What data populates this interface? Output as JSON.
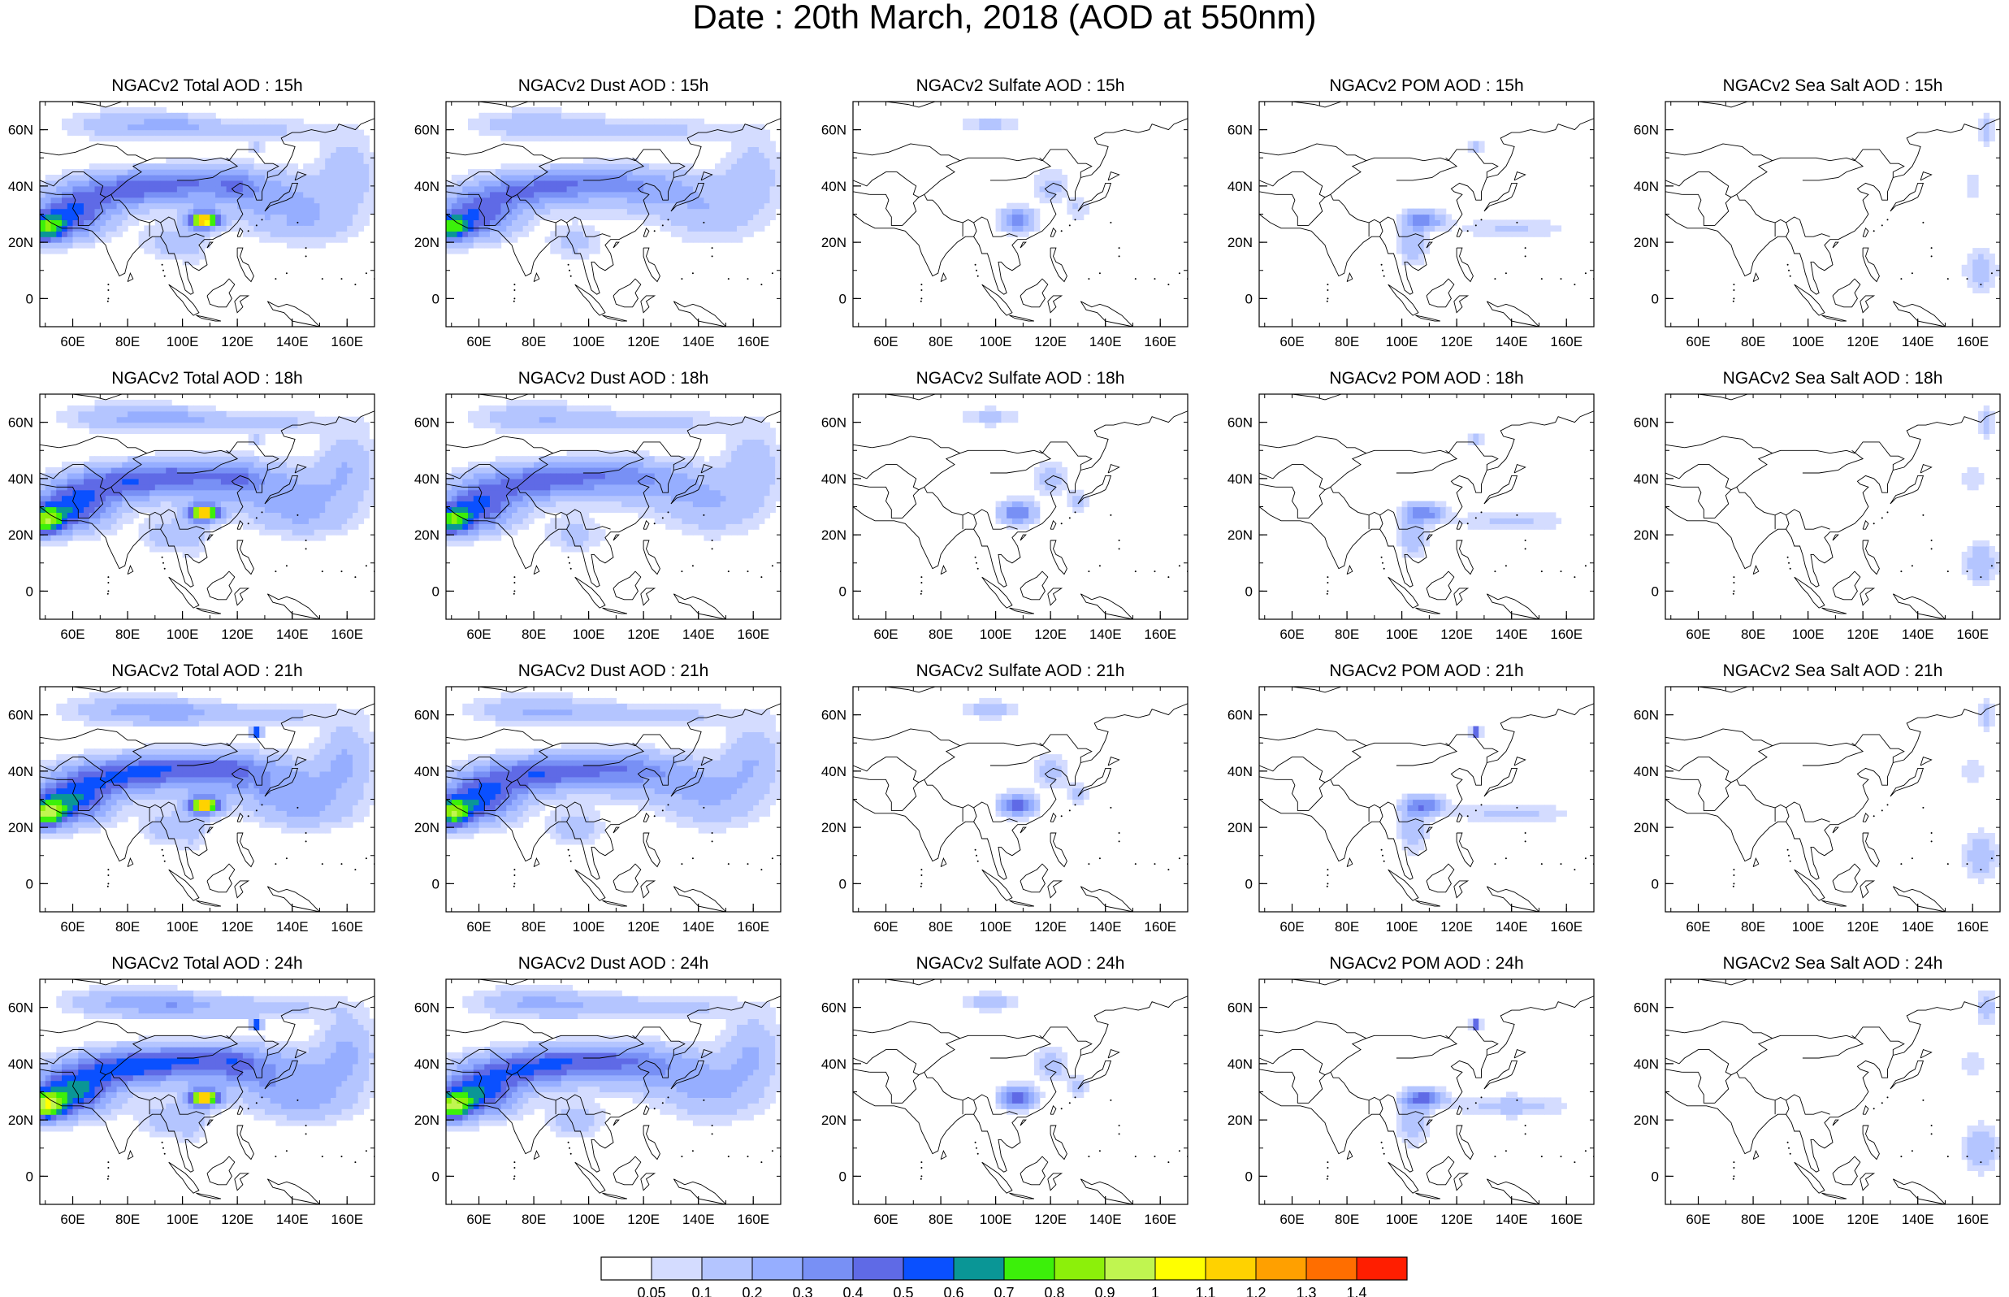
{
  "title": "Date : 20th March, 2018 (AOD at 550nm)",
  "map": {
    "columns": [
      {
        "species": "Total AOD",
        "title_prefix": "NGACv2 Total AOD"
      },
      {
        "species": "Dust AOD",
        "title_prefix": "NGACv2 Dust AOD"
      },
      {
        "species": "Sulfate AOD",
        "title_prefix": "NGACv2 Sulfate AOD"
      },
      {
        "species": "POM AOD",
        "title_prefix": "NGACv2 POM AOD"
      },
      {
        "species": "Sea Salt AOD",
        "title_prefix": "NGACv2 Sea Salt AOD"
      }
    ],
    "forecast_hours": [
      "15h",
      "18h",
      "21h",
      "24h"
    ],
    "panel_titles": [
      [
        "NGACv2 Total AOD : 15h",
        "NGACv2 Dust AOD : 15h",
        "NGACv2 Sulfate AOD : 15h",
        "NGACv2 POM AOD : 15h",
        "NGACv2 Sea Salt AOD : 15h"
      ],
      [
        "NGACv2 Total AOD : 18h",
        "NGACv2 Dust AOD : 18h",
        "NGACv2 Sulfate AOD : 18h",
        "NGACv2 POM AOD : 18h",
        "NGACv2 Sea Salt AOD : 18h"
      ],
      [
        "NGACv2 Total AOD : 21h",
        "NGACv2 Dust AOD : 21h",
        "NGACv2 Sulfate AOD : 21h",
        "NGACv2 POM AOD : 21h",
        "NGACv2 Sea Salt AOD : 21h"
      ],
      [
        "NGACv2 Total AOD : 24h",
        "NGACv2 Dust AOD : 24h",
        "NGACv2 Sulfate AOD : 24h",
        "NGACv2 POM AOD : 24h",
        "NGACv2 Sea Salt  AOD : 24h"
      ]
    ],
    "lon_range": [
      48,
      170
    ],
    "lat_range": [
      -10,
      70
    ],
    "lon_ticks": [
      "60E",
      "80E",
      "100E",
      "120E",
      "140E",
      "160E"
    ],
    "lat_ticks": [
      "60N",
      "40N",
      "20N",
      "0"
    ],
    "land_outline_color": "#000000",
    "colorbar": {
      "labels": [
        "0.05",
        "0.1",
        "0.2",
        "0.3",
        "0.4",
        "0.5",
        "0.6",
        "0.7",
        "0.8",
        "0.9",
        "1",
        "1.1",
        "1.2",
        "1.3",
        "1.4"
      ],
      "colors": [
        "#ffffff",
        "#d4dcff",
        "#b4c5ff",
        "#96aeff",
        "#7890f5",
        "#5f6ae6",
        "#0a50ff",
        "#0a9696",
        "#3cf00a",
        "#8cf00a",
        "#c0f550",
        "#ffff00",
        "#ffd200",
        "#ffa000",
        "#ff6e00",
        "#ff1e00"
      ]
    }
  }
}
